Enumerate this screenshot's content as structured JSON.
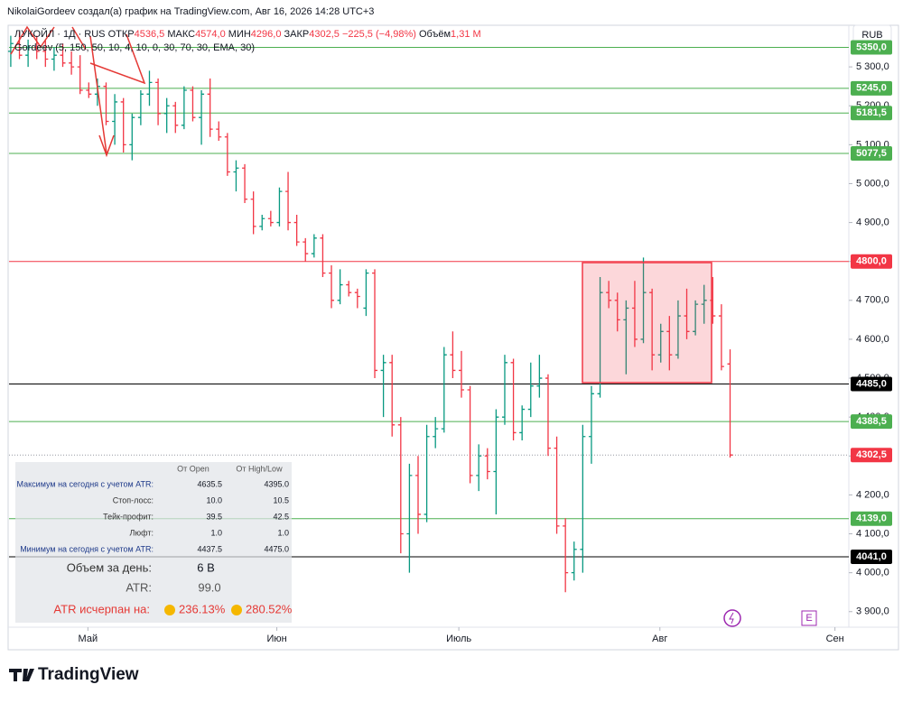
{
  "header": {
    "author_line": "NikolaiGordeev создал(а) график на TradingView.com, Авг 16, 2026 14:28 UTC+3",
    "symbol": "ЛУКОЙЛ · 1Д · RUS",
    "open_label": "ОТКР",
    "open": "4536,5",
    "high_label": "МАКС",
    "high": "4574,0",
    "low_label": "МИН",
    "low": "4296,0",
    "close_label": "ЗАКР",
    "close": "4302,5",
    "change": "−225,5 (−4,98%)",
    "volume_label": "Объём",
    "volume": "1,31 M",
    "indicator": "Gordeev (5, 150, 50, 10, 4, 10, 0, 30, 70, 30, EMA, 30)",
    "currency": "RUB"
  },
  "chart_data": {
    "type": "ohlc",
    "up_color": "#089981",
    "down_color": "#f23645",
    "bars": [
      [
        5340,
        5380,
        5300,
        5360
      ],
      [
        5360,
        5390,
        5320,
        5330
      ],
      [
        5330,
        5370,
        5300,
        5350
      ],
      [
        5350,
        5380,
        5320,
        5340
      ],
      [
        5340,
        5370,
        5300,
        5320
      ],
      [
        5320,
        5350,
        5290,
        5330
      ],
      [
        5330,
        5360,
        5300,
        5310
      ],
      [
        5310,
        5340,
        5280,
        5300
      ],
      [
        5300,
        5330,
        5230,
        5240
      ],
      [
        5240,
        5260,
        5220,
        5230
      ],
      [
        5230,
        5270,
        5200,
        5250
      ],
      [
        5250,
        5260,
        5150,
        5160
      ],
      [
        5160,
        5230,
        5100,
        5210
      ],
      [
        5210,
        5220,
        5080,
        5100
      ],
      [
        5100,
        5180,
        5060,
        5170
      ],
      [
        5170,
        5240,
        5150,
        5230
      ],
      [
        5230,
        5290,
        5200,
        5260
      ],
      [
        5260,
        5270,
        5150,
        5180
      ],
      [
        5180,
        5220,
        5130,
        5200
      ],
      [
        5200,
        5210,
        5130,
        5150
      ],
      [
        5150,
        5250,
        5140,
        5240
      ],
      [
        5240,
        5250,
        5160,
        5170
      ],
      [
        5170,
        5240,
        5100,
        5230
      ],
      [
        5230,
        5270,
        5120,
        5140
      ],
      [
        5140,
        5160,
        5110,
        5120
      ],
      [
        5120,
        5130,
        5020,
        5030
      ],
      [
        5030,
        5060,
        4980,
        5040
      ],
      [
        5040,
        5050,
        4950,
        4960
      ],
      [
        4960,
        4980,
        4870,
        4890
      ],
      [
        4890,
        4920,
        4880,
        4910
      ],
      [
        4910,
        4930,
        4890,
        4900
      ],
      [
        4900,
        4990,
        4890,
        4980
      ],
      [
        4980,
        5030,
        4880,
        4900
      ],
      [
        4900,
        4920,
        4840,
        4850
      ],
      [
        4850,
        4860,
        4800,
        4820
      ],
      [
        4820,
        4870,
        4810,
        4860
      ],
      [
        4860,
        4870,
        4760,
        4770
      ],
      [
        4770,
        4790,
        4680,
        4700
      ],
      [
        4700,
        4780,
        4690,
        4740
      ],
      [
        4740,
        4750,
        4710,
        4720
      ],
      [
        4720,
        4730,
        4680,
        4710
      ],
      [
        4680,
        4780,
        4660,
        4770
      ],
      [
        4770,
        4780,
        4500,
        4520
      ],
      [
        4520,
        4560,
        4400,
        4540
      ],
      [
        4540,
        4560,
        4350,
        4380
      ],
      [
        4380,
        4400,
        4050,
        4100
      ],
      [
        4100,
        4280,
        4000,
        4250
      ],
      [
        4250,
        4300,
        4100,
        4150
      ],
      [
        4150,
        4380,
        4130,
        4350
      ],
      [
        4350,
        4400,
        4320,
        4370
      ],
      [
        4370,
        4580,
        4360,
        4560
      ],
      [
        4560,
        4620,
        4500,
        4520
      ],
      [
        4520,
        4570,
        4450,
        4470
      ],
      [
        4470,
        4480,
        4230,
        4250
      ],
      [
        4250,
        4330,
        4210,
        4300
      ],
      [
        4300,
        4320,
        4240,
        4260
      ],
      [
        4260,
        4420,
        4150,
        4400
      ],
      [
        4400,
        4560,
        4380,
        4540
      ],
      [
        4540,
        4550,
        4340,
        4360
      ],
      [
        4360,
        4430,
        4340,
        4420
      ],
      [
        4420,
        4540,
        4400,
        4480
      ],
      [
        4480,
        4560,
        4450,
        4500
      ],
      [
        4500,
        4510,
        4300,
        4320
      ],
      [
        4320,
        4350,
        4100,
        4120
      ],
      [
        4120,
        4140,
        3950,
        4000
      ],
      [
        4000,
        4080,
        3980,
        4060
      ],
      [
        4060,
        4380,
        4000,
        4350
      ],
      [
        4350,
        4480,
        4280,
        4460
      ],
      [
        4460,
        4760,
        4450,
        4720
      ],
      [
        4720,
        4750,
        4680,
        4700
      ],
      [
        4700,
        4720,
        4620,
        4650
      ],
      [
        4650,
        4700,
        4510,
        4680
      ],
      [
        4680,
        4750,
        4580,
        4600
      ],
      [
        4600,
        4810,
        4590,
        4720
      ],
      [
        4720,
        4730,
        4520,
        4560
      ],
      [
        4560,
        4640,
        4540,
        4620
      ],
      [
        4620,
        4660,
        4520,
        4560
      ],
      [
        4560,
        4700,
        4550,
        4660
      ],
      [
        4660,
        4730,
        4600,
        4620
      ],
      [
        4620,
        4700,
        4610,
        4690
      ],
      [
        4690,
        4740,
        4640,
        4700
      ],
      [
        4700,
        4760,
        4640,
        4660
      ],
      [
        4660,
        4690,
        4520,
        4530
      ],
      [
        4536.5,
        4574,
        4296,
        4302.5
      ]
    ],
    "xlim": [
      -0.2,
      96.7
    ],
    "xticks": [
      {
        "value": 8.9,
        "label": "Май"
      },
      {
        "value": 30.7,
        "label": "Июн"
      },
      {
        "value": 51.7,
        "label": "Июль"
      },
      {
        "value": 74.9,
        "label": "Авг"
      },
      {
        "value": 95.1,
        "label": "Сен"
      }
    ],
    "ylim": [
      3860,
      5400
    ],
    "yticks": [
      {
        "value": 3900,
        "label": "3 900,0"
      },
      {
        "value": 4000,
        "label": "4 000,0"
      },
      {
        "value": 4100,
        "label": "4 100,0"
      },
      {
        "value": 4200,
        "label": "4 200,0"
      },
      {
        "value": 4300,
        "label": "4 300,0"
      },
      {
        "value": 4400,
        "label": "4 400,0"
      },
      {
        "value": 4500,
        "label": "4 500,0"
      },
      {
        "value": 4600,
        "label": "4 600,0"
      },
      {
        "value": 4700,
        "label": "4 700,0"
      },
      {
        "value": 4800,
        "label": "4 800,0"
      },
      {
        "value": 4900,
        "label": "4 900,0"
      },
      {
        "value": 5000,
        "label": "5 000,0"
      },
      {
        "value": 5100,
        "label": "5 100,0"
      },
      {
        "value": 5200,
        "label": "5 200,0"
      },
      {
        "value": 5300,
        "label": "5 300,0"
      }
    ],
    "levels": [
      {
        "value": 5350,
        "label": "5350,0",
        "color": "#4caf50"
      },
      {
        "value": 5245,
        "label": "5245,0",
        "color": "#4caf50"
      },
      {
        "value": 5181.5,
        "label": "5181,5",
        "color": "#4caf50"
      },
      {
        "value": 5077.5,
        "label": "5077,5",
        "color": "#4caf50"
      },
      {
        "value": 4800,
        "label": "4800,0",
        "color": "#f23645"
      },
      {
        "value": 4485,
        "label": "4485,0",
        "color": "#000000"
      },
      {
        "value": 4388.5,
        "label": "4388,5",
        "color": "#4caf50"
      },
      {
        "value": 4302.5,
        "label": "4302,5",
        "color": "#f23645",
        "dotted": true
      },
      {
        "value": 4139,
        "label": "4139,0",
        "color": "#4caf50"
      },
      {
        "value": 4041,
        "label": "4041,0",
        "color": "#000000"
      }
    ]
  },
  "info_table": {
    "columns": [
      "От Open",
      "От High/Low"
    ],
    "rows": [
      [
        "Максимум на сегодня с учетом ATR:",
        "4635.5",
        "4395.0"
      ],
      [
        "Стоп-лосс:",
        "10.0",
        "10.5"
      ],
      [
        "Тейк-профит:",
        "39.5",
        "42.5"
      ],
      [
        "Люфт:",
        "1.0",
        "1.0"
      ],
      [
        "Минимум на сегодня с учетом ATR:",
        "4437.5",
        "4475.0"
      ]
    ],
    "volume_label": "Объем за день:",
    "volume": "6 B",
    "atr_label": "ATR:",
    "atr": "99.0",
    "exhausted_label": "ATR исчерпан на:",
    "exhausted_open": "236.13%",
    "exhausted_hl": "280.52%"
  },
  "footer": {
    "brand": "TradingView"
  }
}
